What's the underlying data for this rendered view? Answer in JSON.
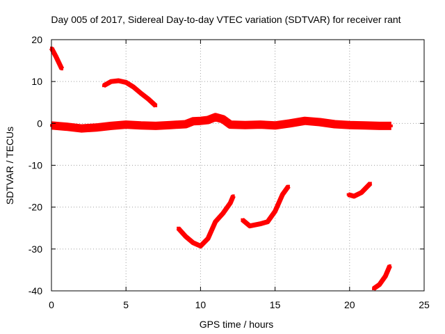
{
  "chart_data": {
    "type": "scatter",
    "title": "Day 005 of 2017, Sidereal Day-to-day VTEC variation (SDTVAR) for receiver rant",
    "xlabel": "GPS time / hours",
    "ylabel": "SDTVAR / TECUs",
    "xlim": [
      0,
      25
    ],
    "ylim": [
      -40,
      20
    ],
    "xticks": [
      0,
      5,
      10,
      15,
      20,
      25
    ],
    "yticks": [
      -40,
      -30,
      -20,
      -10,
      0,
      10,
      20
    ],
    "grid": true,
    "colors": {
      "series": "#ff0000",
      "grid": "#a0a0a0",
      "axis": "#000000"
    },
    "series": [
      {
        "name": "main-band",
        "x": [
          0,
          1,
          2,
          3,
          4,
          5,
          6,
          7,
          8,
          9,
          9.5,
          10,
          10.5,
          11,
          11.5,
          12,
          13,
          14,
          15,
          16,
          17,
          18,
          19,
          20,
          21,
          22,
          22.8
        ],
        "y": [
          -0.5,
          -0.8,
          -1.2,
          -1.0,
          -0.6,
          -0.3,
          -0.5,
          -0.6,
          -0.4,
          -0.2,
          0.5,
          0.6,
          0.8,
          1.5,
          1.0,
          -0.3,
          -0.4,
          -0.3,
          -0.5,
          0,
          0.6,
          0.3,
          -0.2,
          -0.4,
          -0.5,
          -0.6,
          -0.6
        ]
      },
      {
        "name": "arc-1",
        "x": [
          0,
          0.3,
          0.7
        ],
        "y": [
          18,
          16,
          13
        ]
      },
      {
        "name": "arc-2",
        "x": [
          3.5,
          4,
          4.5,
          5,
          5.5,
          6,
          6.5,
          7
        ],
        "y": [
          9,
          10,
          10.2,
          9.8,
          8.7,
          7.2,
          5.8,
          4.2
        ]
      },
      {
        "name": "arc-3",
        "x": [
          8.5,
          9,
          9.5,
          10,
          10.5,
          11,
          11.5,
          12,
          12.2
        ],
        "y": [
          -25,
          -27,
          -28.5,
          -29.3,
          -27.5,
          -23.5,
          -21.5,
          -19,
          -17.3
        ]
      },
      {
        "name": "arc-4",
        "x": [
          12.8,
          13.3,
          14,
          14.5,
          15,
          15.5,
          15.9
        ],
        "y": [
          -23,
          -24.5,
          -24,
          -23.5,
          -21,
          -17,
          -15
        ]
      },
      {
        "name": "arc-5",
        "x": [
          19.9,
          20.3,
          20.8,
          21.4
        ],
        "y": [
          -17,
          -17.4,
          -16.5,
          -14.3
        ]
      },
      {
        "name": "arc-6",
        "x": [
          21.6,
          22,
          22.4,
          22.7
        ],
        "y": [
          -39.5,
          -38.5,
          -36.5,
          -34
        ]
      }
    ]
  }
}
